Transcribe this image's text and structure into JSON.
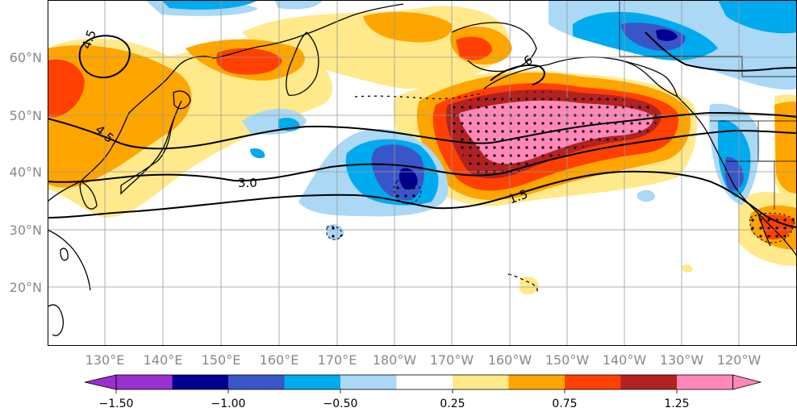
{
  "map": {
    "lon_labels": [
      "130°E",
      "140°E",
      "150°E",
      "160°E",
      "170°E",
      "180°W",
      "170°W",
      "160°W",
      "150°W",
      "140°W",
      "130°W",
      "120°W"
    ],
    "lat_labels": [
      "60°N",
      "50°N",
      "40°N",
      "30°N",
      "20°N"
    ],
    "contour_labels": [
      "4.5",
      "4.5",
      "3.0",
      "1.5",
      "6"
    ],
    "stippling": "significant anomalies"
  },
  "colorbar": {
    "tick_labels": [
      "−1.50",
      "−1.00",
      "−0.50",
      "0.25",
      "0.75",
      "1.25"
    ],
    "colors": [
      "#9b30d0",
      "#000090",
      "#3a55c8",
      "#00aaee",
      "#aad8f5",
      "#ffffff",
      "#ffe98a",
      "#ffa500",
      "#ff4000",
      "#b22222",
      "#ff88b8"
    ]
  }
}
